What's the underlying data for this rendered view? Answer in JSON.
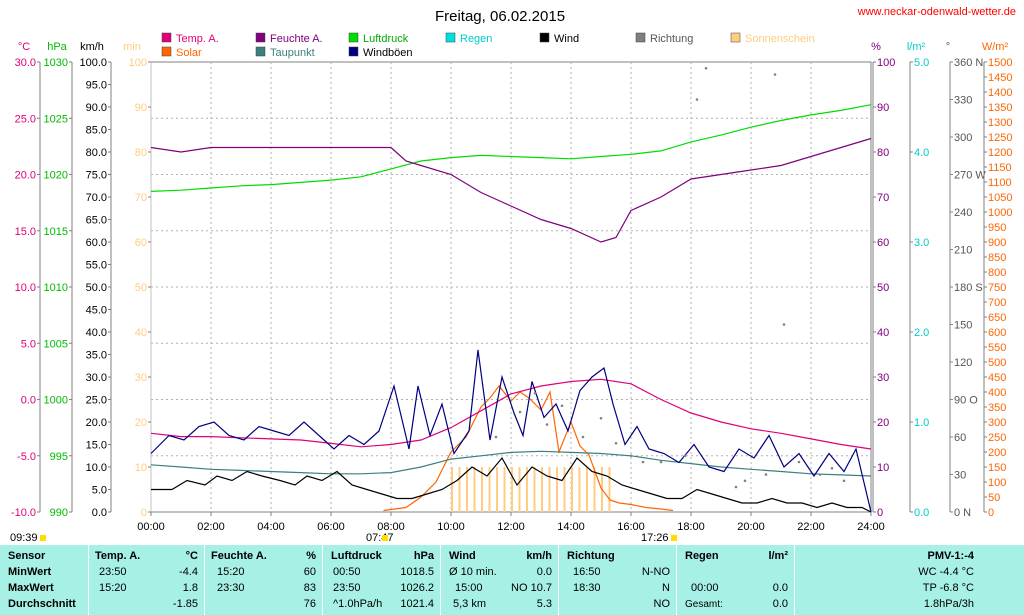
{
  "title": "Freitag, 06.02.2015",
  "website": "www.neckar-odenwald-wetter.de",
  "colors": {
    "temp": "#e0007a",
    "feuchte": "#800080",
    "luftdruck": "#00dd00",
    "regen": "#00e0e0",
    "wind": "#000000",
    "richtung": "#808080",
    "sonne": "#ffcc80",
    "solar": "#ff6600",
    "taupunkt": "#3d7f7f",
    "windboeen": "#000080",
    "table_bg": "#a6f0e6"
  },
  "legend": [
    {
      "label": "Temp. A.",
      "color": "#e0007a",
      "text_color": "#e0007a"
    },
    {
      "label": "Feuchte A.",
      "color": "#800080",
      "text_color": "#800080"
    },
    {
      "label": "Luftdruck",
      "color": "#00dd00",
      "text_color": "#00aa00"
    },
    {
      "label": "Regen",
      "color": "#00e0e0",
      "text_color": "#00cccc"
    },
    {
      "label": "Wind",
      "color": "#000000",
      "text_color": "#000000"
    },
    {
      "label": "Richtung",
      "color": "#808080",
      "text_color": "#555555"
    },
    {
      "label": "Sonnenschein",
      "color": "#ffcc80",
      "text_color": "#ffcc80"
    },
    {
      "label": "Solar",
      "color": "#ff6600",
      "text_color": "#ff6600"
    },
    {
      "label": "Taupunkt",
      "color": "#3d7f7f",
      "text_color": "#3d7f7f"
    },
    {
      "label": "Windböen",
      "color": "#000080",
      "text_color": "#000000"
    }
  ],
  "axis_units": {
    "temp": "°C",
    "hpa": "hPa",
    "kmh": "km/h",
    "min": "min",
    "pct": "%",
    "rain": "l/m²",
    "deg": "°",
    "wm2": "W/m²"
  },
  "sun": {
    "moonrise": "09:39",
    "sunrise": "07:47",
    "sunset": "17:26"
  },
  "chart_data": {
    "type": "line",
    "title": "Freitag, 06.02.2015",
    "x_ticks": [
      "00:00",
      "02:00",
      "04:00",
      "06:00",
      "08:00",
      "10:00",
      "12:00",
      "14:00",
      "16:00",
      "18:00",
      "20:00",
      "22:00",
      "24:00"
    ],
    "x_range_hours": [
      0,
      24
    ],
    "axes": {
      "temp_c": {
        "range": [
          -10,
          30
        ],
        "ticks": [
          "30.0",
          "25.0",
          "20.0",
          "15.0",
          "10.0",
          "5.0",
          "0.0",
          "-5.0",
          "-10.0"
        ]
      },
      "hpa": {
        "range": [
          990,
          1030
        ],
        "ticks": [
          "1030",
          "1025",
          "1020",
          "1015",
          "1010",
          "1005",
          "1000",
          "995",
          "990"
        ]
      },
      "kmh": {
        "range": [
          0,
          100
        ],
        "ticks": [
          "100.0",
          "95.0",
          "90.0",
          "85.0",
          "80.0",
          "75.0",
          "70.0",
          "65.0",
          "60.0",
          "55.0",
          "50.0",
          "45.0",
          "40.0",
          "35.0",
          "30.0",
          "25.0",
          "20.0",
          "15.0",
          "10.0",
          "5.0",
          "0.0"
        ]
      },
      "min": {
        "range": [
          0,
          100
        ],
        "ticks": [
          "100",
          "90",
          "80",
          "70",
          "60",
          "50",
          "40",
          "30",
          "20",
          "10",
          "0"
        ]
      },
      "pct": {
        "range": [
          0,
          100
        ],
        "ticks": [
          "100",
          "90",
          "80",
          "70",
          "60",
          "50",
          "40",
          "30",
          "20",
          "10",
          "0"
        ]
      },
      "rain": {
        "range": [
          0,
          5
        ],
        "ticks": [
          "5.0",
          "4.0",
          "3.0",
          "2.0",
          "1.0",
          "0.0"
        ]
      },
      "deg": {
        "range": [
          0,
          360
        ],
        "ticks": [
          "360 N",
          "330",
          "300",
          "270 W",
          "240",
          "210",
          "180 S",
          "150",
          "120",
          "90 O",
          "60",
          "30",
          "0 N"
        ]
      },
      "wm2": {
        "range": [
          0,
          1500
        ],
        "ticks": [
          "1500",
          "1450",
          "1400",
          "1350",
          "1300",
          "1250",
          "1200",
          "1150",
          "1100",
          "1050",
          "1000",
          "950",
          "900",
          "850",
          "800",
          "750",
          "700",
          "650",
          "600",
          "550",
          "500",
          "450",
          "400",
          "350",
          "300",
          "250",
          "200",
          "150",
          "100",
          "50",
          "0"
        ]
      }
    },
    "series": [
      {
        "name": "Temp. A.",
        "axis": "temp_c",
        "x": [
          0,
          1,
          2,
          3,
          4,
          5,
          6,
          7,
          8,
          9,
          10,
          11,
          12,
          13,
          14,
          15,
          16,
          17,
          18,
          19,
          20,
          21,
          22,
          23,
          24
        ],
        "values": [
          -3.0,
          -3.3,
          -3.3,
          -3.4,
          -3.5,
          -3.6,
          -3.9,
          -4.2,
          -4.0,
          -3.6,
          -2.5,
          -1.0,
          0.5,
          1.2,
          1.6,
          1.8,
          1.4,
          0.0,
          -1.2,
          -2.0,
          -2.6,
          -3.0,
          -3.5,
          -4.0,
          -4.4
        ]
      },
      {
        "name": "Feuchte A.",
        "axis": "pct",
        "x": [
          0,
          1,
          2,
          3,
          4,
          5,
          6,
          7,
          8,
          8.5,
          9,
          10,
          11,
          12,
          13,
          14,
          15,
          15.5,
          16,
          17,
          18,
          19,
          20,
          21,
          22,
          23,
          24
        ],
        "values": [
          81,
          80,
          81,
          81,
          81,
          81,
          81,
          81,
          81,
          78,
          77,
          75,
          71,
          68,
          65,
          63,
          60,
          61,
          67,
          70,
          74,
          75,
          76,
          77,
          79,
          81,
          83
        ]
      },
      {
        "name": "Luftdruck",
        "axis": "hpa",
        "x": [
          0,
          1,
          2,
          3,
          4,
          5,
          6,
          7,
          8,
          9,
          10,
          11,
          12,
          13,
          14,
          15,
          16,
          17,
          18,
          19,
          20,
          21,
          22,
          23,
          24
        ],
        "values": [
          1018.5,
          1018.6,
          1018.8,
          1019.0,
          1019.1,
          1019.3,
          1019.5,
          1019.8,
          1020.5,
          1021.2,
          1021.5,
          1021.7,
          1021.6,
          1021.5,
          1021.4,
          1021.6,
          1021.8,
          1022.1,
          1022.9,
          1023.5,
          1024.2,
          1024.8,
          1025.3,
          1025.7,
          1026.2
        ]
      },
      {
        "name": "Taupunkt",
        "axis": "temp_c",
        "x": [
          0,
          1,
          2,
          3,
          4,
          5,
          6,
          7,
          8,
          9,
          10,
          11,
          12,
          13,
          14,
          15,
          16,
          17,
          18,
          19,
          20,
          21,
          22,
          23,
          24
        ],
        "values": [
          -5.8,
          -6.0,
          -6.2,
          -6.3,
          -6.4,
          -6.5,
          -6.6,
          -6.6,
          -6.5,
          -6.0,
          -5.3,
          -5.0,
          -4.7,
          -4.6,
          -4.7,
          -4.8,
          -5.0,
          -5.4,
          -5.7,
          -6.0,
          -6.2,
          -6.4,
          -6.6,
          -6.7,
          -6.8
        ]
      },
      {
        "name": "Wind",
        "axis": "kmh",
        "x": [
          0,
          0.7,
          1.2,
          1.8,
          2.2,
          2.7,
          3.2,
          3.7,
          4.3,
          4.8,
          5.2,
          5.7,
          6.2,
          6.7,
          7.2,
          7.7,
          8.2,
          8.7,
          9.2,
          9.7,
          10.2,
          10.7,
          11.2,
          11.7,
          12.2,
          12.7,
          13.2,
          13.7,
          14.2,
          14.7,
          15.2,
          15.7,
          16.2,
          16.7,
          17.2,
          17.7,
          18.2,
          18.7,
          19.2,
          19.7,
          20.2,
          20.7,
          21.2,
          21.7,
          22.2,
          22.7,
          23.2,
          23.7,
          24
        ],
        "values": [
          5,
          5,
          7,
          6,
          8,
          7,
          9,
          8,
          7,
          6,
          8,
          7,
          9,
          6,
          5,
          4,
          3,
          3,
          4,
          5,
          7,
          10,
          8,
          12,
          6,
          10,
          8,
          7,
          12,
          9,
          8,
          6,
          5,
          4,
          3,
          3,
          5,
          4,
          3,
          2,
          2,
          3,
          2,
          2,
          1,
          2,
          1,
          1,
          0
        ]
      },
      {
        "name": "Windböen",
        "axis": "kmh",
        "x": [
          0,
          0.6,
          1.1,
          1.6,
          2.1,
          2.6,
          3.1,
          3.6,
          4.1,
          4.6,
          5.1,
          5.6,
          6.1,
          6.6,
          7.1,
          7.6,
          8.1,
          8.6,
          8.9,
          9.3,
          9.7,
          10.1,
          10.6,
          10.9,
          11.3,
          11.7,
          12.1,
          12.4,
          12.7,
          13.1,
          13.5,
          13.9,
          14.3,
          14.7,
          15.1,
          15.4,
          15.8,
          16.2,
          16.6,
          17.1,
          17.6,
          18.1,
          18.6,
          19.1,
          19.6,
          20.1,
          20.6,
          21.1,
          21.6,
          22.1,
          22.6,
          23.1,
          23.5,
          24
        ],
        "values": [
          13,
          17,
          16,
          19,
          20,
          17,
          16,
          19,
          18,
          17,
          20,
          17,
          14,
          17,
          15,
          18,
          28,
          14,
          28,
          17,
          24,
          13,
          18,
          36,
          16,
          30,
          22,
          17,
          29,
          21,
          24,
          18,
          27,
          30,
          32,
          24,
          15,
          19,
          14,
          13,
          11,
          15,
          10,
          9,
          14,
          12,
          17,
          10,
          13,
          8,
          13,
          9,
          14,
          0
        ]
      },
      {
        "name": "Solar",
        "axis": "wm2",
        "x": [
          7.75,
          8.5,
          9,
          9.5,
          10,
          10.5,
          11,
          11.3,
          11.6,
          12,
          12.3,
          12.6,
          13,
          13.3,
          13.6,
          14,
          14.3,
          14.6,
          15,
          15.3,
          15.6,
          16,
          16.5,
          17,
          17.4
        ],
        "values": [
          5,
          15,
          50,
          100,
          200,
          250,
          350,
          380,
          420,
          370,
          400,
          380,
          340,
          400,
          200,
          300,
          220,
          190,
          80,
          40,
          30,
          25,
          15,
          10,
          5
        ]
      },
      {
        "name": "Sonnenschein",
        "axis": "min",
        "x": [
          10,
          10.25,
          10.5,
          10.75,
          11,
          11.25,
          11.5,
          11.75,
          12,
          12.25,
          12.5,
          12.75,
          13,
          13.25,
          13.5,
          13.75,
          14,
          14.25,
          14.5,
          14.75,
          15,
          15.25
        ],
        "values": [
          10,
          10,
          10,
          10,
          10,
          10,
          10,
          10,
          10,
          10,
          10,
          10,
          10,
          10,
          10,
          10,
          10,
          10,
          10,
          10,
          10,
          10
        ]
      },
      {
        "name": "Richtung",
        "axis": "deg",
        "type": "scatter",
        "x": [
          11.5,
          12.3,
          12.8,
          13.2,
          13.7,
          14.4,
          15.0,
          15.5,
          16.0,
          16.4,
          17.0,
          17.8,
          18.2,
          18.5,
          19.5,
          19.8,
          20.5,
          20.8,
          21.1,
          21.6,
          22.3,
          22.7,
          23.1
        ],
        "values": [
          60,
          80,
          95,
          70,
          85,
          60,
          75,
          55,
          45,
          40,
          40,
          45,
          330,
          355,
          20,
          25,
          30,
          350,
          150,
          40,
          30,
          35,
          25
        ]
      }
    ]
  },
  "stats_table": {
    "sensor": {
      "header": "Sensor",
      "rows": [
        "MinWert",
        "MaxWert",
        "Durchschnitt"
      ]
    },
    "temp": {
      "header": "Temp. A.",
      "unit": "°C",
      "rows": [
        [
          "23:50",
          "-4.4"
        ],
        [
          "15:20",
          "1.8"
        ],
        [
          "",
          "-1.85"
        ]
      ]
    },
    "feuchte": {
      "header": "Feuchte A.",
      "unit": "%",
      "rows": [
        [
          "15:20",
          "60"
        ],
        [
          "23:30",
          "83"
        ],
        [
          "",
          "76"
        ]
      ]
    },
    "luftdruck": {
      "header": "Luftdruck",
      "unit": "hPa",
      "rows": [
        [
          "00:50",
          "1018.5"
        ],
        [
          "23:50",
          "1026.2"
        ],
        [
          "^1.0hPa/h",
          "1021.4"
        ]
      ]
    },
    "wind": {
      "header": "Wind",
      "unit": "km/h",
      "rows": [
        [
          "Ø 10 min.",
          "0.0"
        ],
        [
          "15:00",
          "NO 10.7"
        ],
        [
          "5,3 km",
          "5.3"
        ]
      ]
    },
    "richtung": {
      "header": "Richtung",
      "rows": [
        [
          "16:50",
          "N-NO"
        ],
        [
          "18:30",
          "N"
        ],
        [
          "",
          "NO"
        ]
      ]
    },
    "regen": {
      "header": "Regen",
      "unit": "l/m²",
      "rows": [
        [
          "",
          ""
        ],
        [
          "00:00",
          "0.0"
        ],
        [
          "Gesamt:",
          "0.0"
        ]
      ]
    },
    "pmv": {
      "header": "PMV-1:-4",
      "rows": [
        "WC -4.4 °C",
        "TP -6.8 °C",
        "1.8hPa/3h"
      ]
    }
  }
}
